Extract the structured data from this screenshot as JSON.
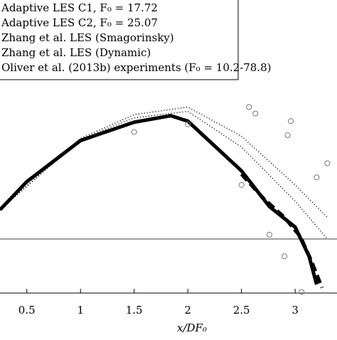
{
  "chart_data": {
    "type": "line",
    "xlabel": "x/DF₀",
    "xlim": [
      0.25,
      3.39
    ],
    "xticks": [
      0.5,
      1,
      1.5,
      2,
      2.5,
      3
    ],
    "ylim": [
      -0.5,
      2.21
    ],
    "reference_line": 0,
    "legend": "upper left",
    "series": [
      {
        "name": "Adaptive LES C1, F₀ = 17.72",
        "color": "#000000",
        "style": "solid",
        "x": [
          0.25,
          0.5,
          1,
          1.5,
          1.84,
          2,
          2.5,
          2.76,
          3,
          3.13,
          3.2
        ],
        "values": [
          0.27,
          0.53,
          0.91,
          1.08,
          1.14,
          1.09,
          0.63,
          0.3,
          0.11,
          -0.16,
          -0.42
        ]
      },
      {
        "name": "Adaptive LES C2, F₀ = 25.07",
        "color": "#000000",
        "style": "dashed",
        "x": [
          2.5,
          2.7,
          2.9,
          3.05,
          3.15,
          3.25
        ],
        "values": [
          0.6,
          0.38,
          0.2,
          0.02,
          -0.2,
          -0.45
        ]
      },
      {
        "name": "Zhang et al. LES (Smagorinsky)",
        "color": "#000000",
        "style": "dotted",
        "x": [
          0.25,
          1,
          1.5,
          2,
          2.5,
          3,
          3.3
        ],
        "values": [
          0.27,
          0.93,
          1.15,
          1.22,
          0.95,
          0.5,
          0.2
        ]
      },
      {
        "name": "Zhang et al. LES (Dynamic)",
        "color": "#000000",
        "style": "dotted",
        "x": [
          0.25,
          1,
          1.5,
          2,
          2.5,
          3,
          3.3
        ],
        "values": [
          0.27,
          0.92,
          1.12,
          1.18,
          0.85,
          0.35,
          0.0
        ]
      },
      {
        "name": "Oliver et al. (2013b) experiments (F₀ = 10.2-78.8)",
        "color": "#777777",
        "style": "markers",
        "x": [
          1.5,
          2.0,
          2.5,
          2.76,
          2.9,
          3.06,
          2.63,
          2.93,
          3.2,
          2.57,
          2.96,
          3.3
        ],
        "values": [
          0.99,
          1.06,
          0.5,
          0.04,
          -0.16,
          -0.49,
          1.16,
          0.96,
          0.57,
          1.22,
          1.09,
          0.7
        ]
      }
    ]
  }
}
